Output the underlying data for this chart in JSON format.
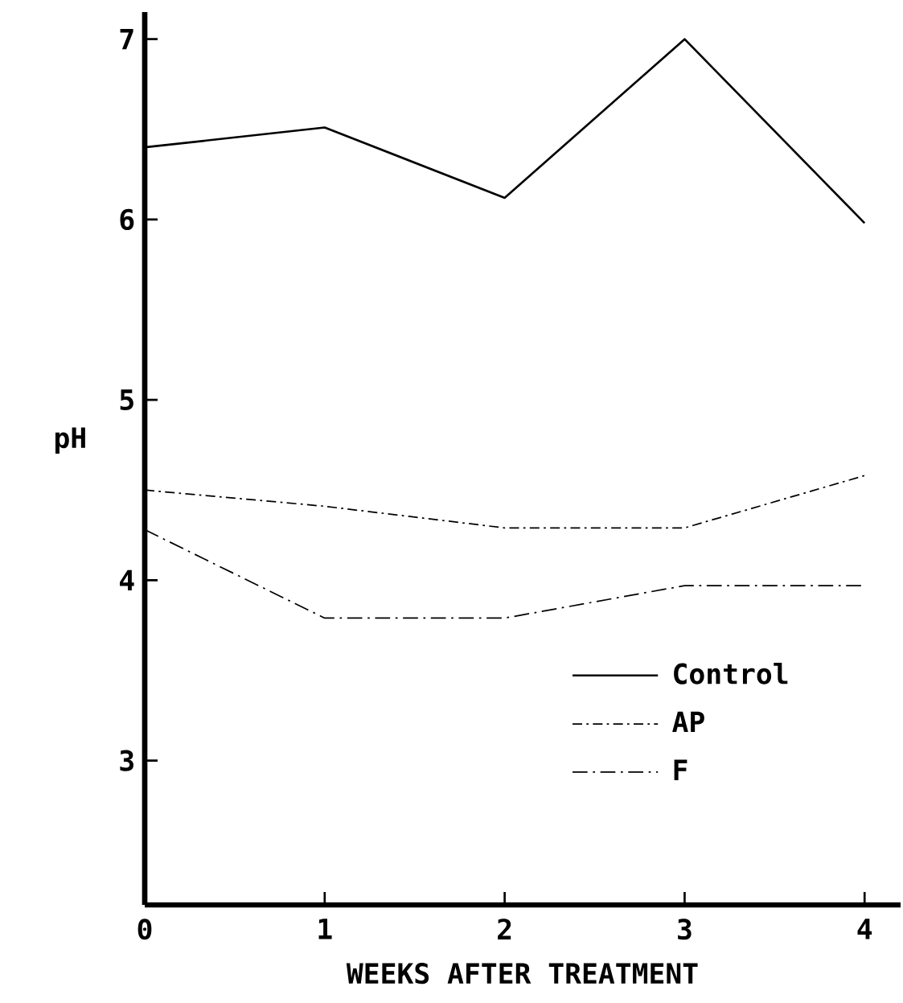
{
  "chart_data": {
    "type": "line",
    "xlabel": "WEEKS AFTER TREATMENT",
    "ylabel": "pH",
    "x": [
      0,
      1,
      2,
      3,
      4
    ],
    "series": [
      {
        "name": "Control",
        "color": "#000000",
        "line_style": "solid",
        "values": [
          6.4,
          6.51,
          6.12,
          7.0,
          5.98
        ]
      },
      {
        "name": "AP",
        "color": "#000000",
        "line_style": "dashed",
        "values": [
          4.5,
          4.41,
          4.29,
          4.29,
          4.58
        ]
      },
      {
        "name": "F",
        "color": "#000000",
        "line_style": "dotted",
        "values": [
          4.28,
          3.79,
          3.79,
          3.97,
          3.97
        ]
      }
    ],
    "xlim": [
      0,
      4.2
    ],
    "ylim": [
      2.2,
      7.15
    ],
    "xticks": [
      0,
      1,
      2,
      3,
      4
    ],
    "yticks": [
      3,
      4,
      5,
      6,
      7
    ],
    "legend": "bottom right"
  }
}
